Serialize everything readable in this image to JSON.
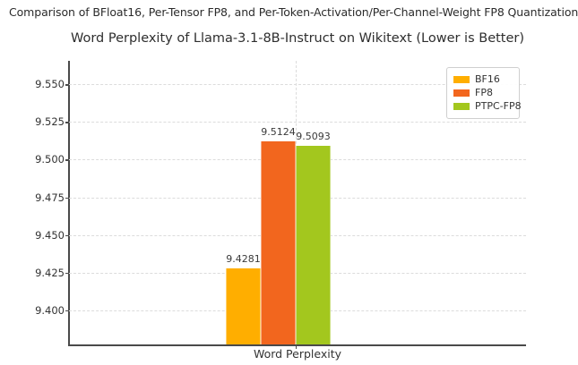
{
  "page": {
    "heading": "Comparison of BFloat16, Per-Tensor FP8, and Per-Token-Activation/Per-Channel-Weight FP8 Quantization"
  },
  "chart_data": {
    "type": "bar",
    "title": "Word Perplexity of Llama-3.1-8B-Instruct on Wikitext (Lower is Better)",
    "xlabel": "Word Perplexity",
    "ylabel": "",
    "categories": [
      "Word Perplexity"
    ],
    "series": [
      {
        "name": "BF16",
        "values": [
          9.4281
        ],
        "color": "#FFAE00"
      },
      {
        "name": "FP8",
        "values": [
          9.5124
        ],
        "color": "#F2661E"
      },
      {
        "name": "PTPC-FP8",
        "values": [
          9.5093
        ],
        "color": "#A3C71E"
      }
    ],
    "value_labels": [
      "9.4281",
      "9.5124",
      "9.5093"
    ],
    "ylim": [
      9.3775,
      9.5655
    ],
    "yticks": [
      9.4,
      9.425,
      9.45,
      9.475,
      9.5,
      9.525,
      9.55
    ],
    "ytick_labels": [
      "9.400",
      "9.425",
      "9.450",
      "9.475",
      "9.500",
      "9.525",
      "9.550"
    ],
    "grid": "dashed, horizontal at y-ticks plus vertical at category tick",
    "legend": {
      "position": "upper right",
      "entries": [
        "BF16",
        "FP8",
        "PTPC-FP8"
      ]
    }
  }
}
